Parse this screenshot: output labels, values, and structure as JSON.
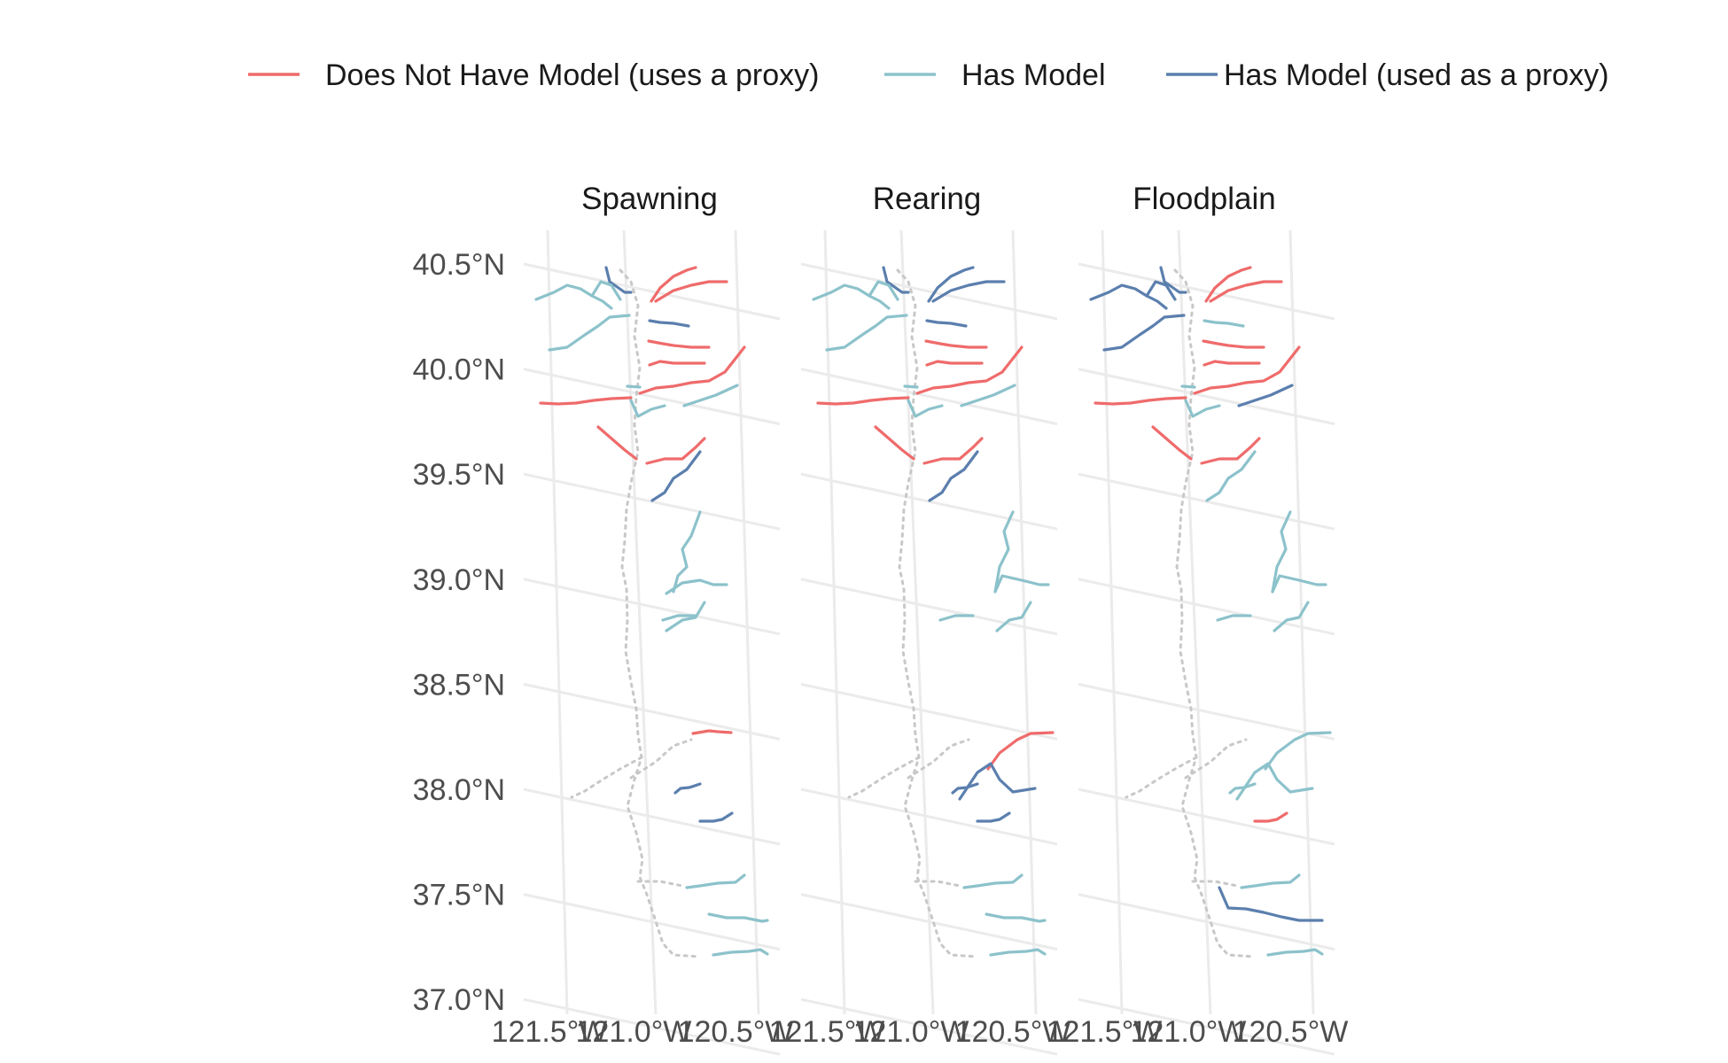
{
  "legend": {
    "items": [
      {
        "label": "Does Not Have Model (uses a proxy)",
        "color": "#ef6b6b"
      },
      {
        "label": "Has Model",
        "color": "#8cc2cb"
      },
      {
        "label": "Has Model (used as a proxy)",
        "color": "#5b7fae"
      }
    ]
  },
  "chart_data": {
    "type": "faceted-map",
    "panels": [
      "Spawning",
      "Rearing",
      "Floodplain"
    ],
    "y_ticks": [
      "40.5°N",
      "40.0°N",
      "39.5°N",
      "39.0°N",
      "38.5°N",
      "38.0°N",
      "37.5°N",
      "37.0°N"
    ],
    "x_ticks": [
      "121.5°W",
      "121.0°W",
      "120.5°W"
    ],
    "categories": [
      "Does Not Have Model (uses a proxy)",
      "Has Model",
      "Has Model (used as a proxy)"
    ],
    "lat_range": [
      37.0,
      40.5
    ],
    "lon_range": [
      -121.5,
      -120.5
    ],
    "rivers": [
      {
        "name": "R1",
        "classes": [
          "blue",
          "blue",
          "blue"
        ]
      },
      {
        "name": "R2",
        "classes": [
          "red",
          "blue",
          "red"
        ]
      },
      {
        "name": "R3",
        "classes": [
          "red",
          "blue",
          "red"
        ]
      },
      {
        "name": "R4",
        "classes": [
          "teal",
          "teal",
          "blue"
        ]
      },
      {
        "name": "R5",
        "classes": [
          "teal",
          "teal",
          "blue"
        ]
      },
      {
        "name": "R6",
        "classes": [
          "teal",
          "teal",
          "blue"
        ]
      },
      {
        "name": "R7",
        "classes": [
          "blue",
          "blue",
          "teal"
        ]
      },
      {
        "name": "R8",
        "classes": [
          "red",
          "red",
          "red"
        ]
      },
      {
        "name": "R9",
        "classes": [
          "red",
          "red",
          "red"
        ]
      },
      {
        "name": "R10",
        "classes": [
          "red",
          "red",
          "red"
        ]
      },
      {
        "name": "R11",
        "classes": [
          "teal",
          "teal",
          "teal"
        ]
      },
      {
        "name": "R12",
        "classes": [
          "teal",
          "teal",
          "blue"
        ]
      },
      {
        "name": "R13",
        "classes": [
          "red",
          "red",
          "red"
        ]
      },
      {
        "name": "R14",
        "classes": [
          "teal",
          "teal",
          "teal"
        ]
      },
      {
        "name": "R15",
        "classes": [
          "red",
          "red",
          "red"
        ]
      },
      {
        "name": "R16",
        "classes": [
          "red",
          "red",
          "red"
        ]
      },
      {
        "name": "R17",
        "classes": [
          "blue",
          "blue",
          "teal"
        ]
      },
      {
        "name": "R18",
        "classes": [
          "teal",
          "teal",
          "teal"
        ]
      },
      {
        "name": "R19",
        "classes": [
          "teal",
          "teal",
          "teal"
        ]
      },
      {
        "name": "R20",
        "classes": [
          "teal",
          "teal",
          "teal"
        ]
      },
      {
        "name": "R21",
        "classes": [
          "teal",
          "teal",
          "teal"
        ]
      },
      {
        "name": "R22",
        "classes": [
          "red",
          "red",
          "teal"
        ]
      },
      {
        "name": "R23",
        "classes": [
          "none",
          "blue",
          "teal"
        ]
      },
      {
        "name": "R24",
        "classes": [
          "blue",
          "blue",
          "teal"
        ]
      },
      {
        "name": "R25",
        "classes": [
          "blue",
          "blue",
          "red"
        ]
      },
      {
        "name": "R26",
        "classes": [
          "teal",
          "teal",
          "teal"
        ]
      },
      {
        "name": "R27",
        "classes": [
          "teal",
          "teal",
          "blue"
        ]
      },
      {
        "name": "R28",
        "classes": [
          "teal",
          "teal",
          "teal"
        ]
      }
    ]
  }
}
